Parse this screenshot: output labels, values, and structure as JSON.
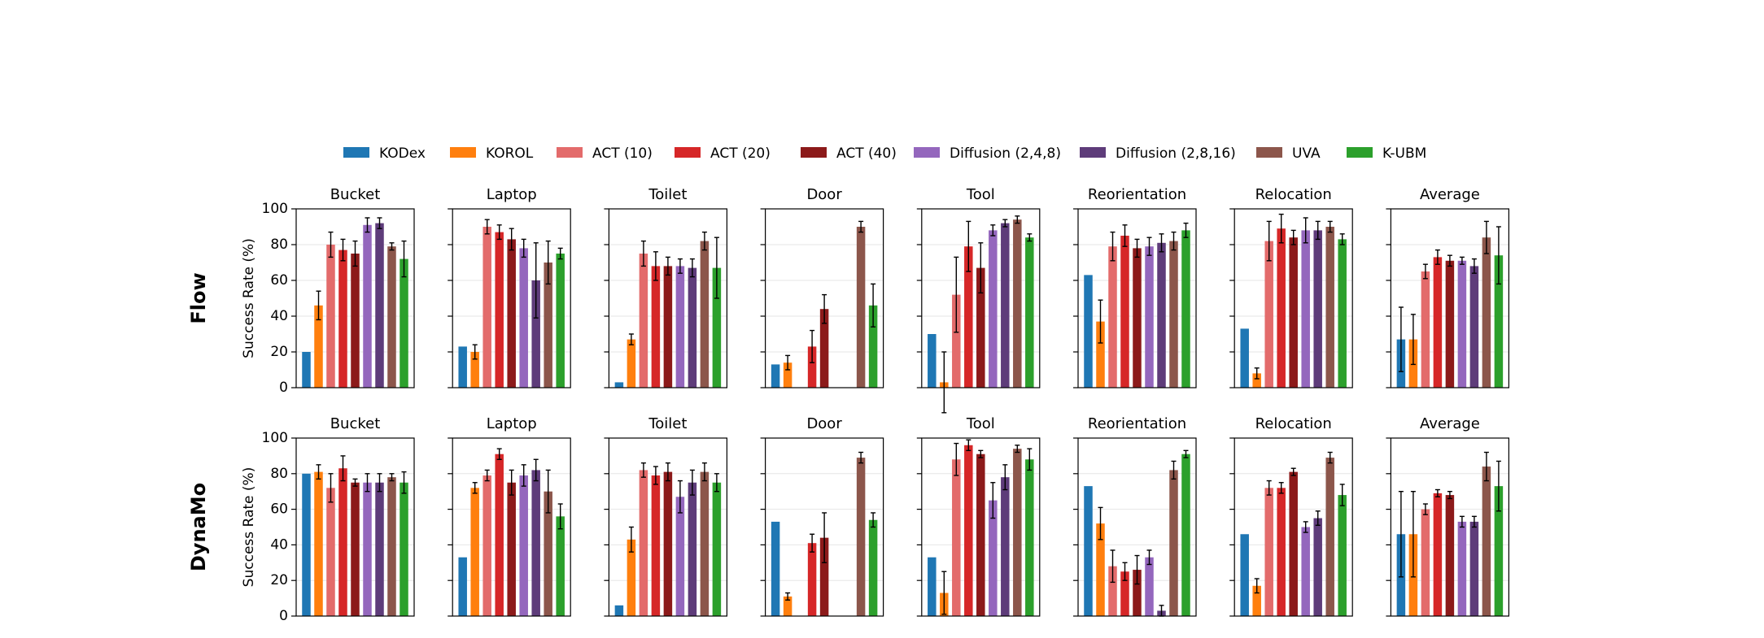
{
  "chart_data": {
    "type": "bar",
    "series": [
      {
        "name": "KODex",
        "color": "#1f77b4"
      },
      {
        "name": "KOROL",
        "color": "#ff7f0e"
      },
      {
        "name": "ACT (10)",
        "color": "#e36b6b"
      },
      {
        "name": "ACT (20)",
        "color": "#d62728"
      },
      {
        "name": "ACT (40)",
        "color": "#8c1a1a"
      },
      {
        "name": "Diffusion (2,4,8)",
        "color": "#9467bd"
      },
      {
        "name": "Diffusion (2,8,16)",
        "color": "#5e3c7a"
      },
      {
        "name": "UVA",
        "color": "#8c564b"
      },
      {
        "name": "K-UBM",
        "color": "#2ca02c"
      }
    ],
    "ylim": [
      0,
      100
    ],
    "yticks": [
      0,
      20,
      40,
      60,
      80,
      100
    ],
    "grid": true,
    "rows": [
      {
        "label": "Flow",
        "ylabel": "Success Rate (%)",
        "panels": [
          {
            "title": "Bucket",
            "values": [
              20,
              46,
              80,
              77,
              75,
              91,
              92,
              79,
              72
            ],
            "errors": [
              null,
              8,
              7,
              6,
              7,
              4,
              3,
              2,
              10
            ]
          },
          {
            "title": "Laptop",
            "values": [
              23,
              20,
              90,
              87,
              83,
              78,
              60,
              70,
              75
            ],
            "errors": [
              null,
              4,
              4,
              4,
              6,
              5,
              21,
              12,
              3
            ]
          },
          {
            "title": "Toilet",
            "values": [
              3,
              27,
              75,
              68,
              68,
              68,
              67,
              82,
              67
            ],
            "errors": [
              null,
              3,
              7,
              8,
              5,
              4,
              5,
              5,
              17
            ]
          },
          {
            "title": "Door",
            "values": [
              13,
              14,
              null,
              23,
              44,
              null,
              null,
              90,
              46
            ],
            "errors": [
              null,
              4,
              null,
              9,
              8,
              null,
              null,
              3,
              12
            ]
          },
          {
            "title": "Tool",
            "values": [
              30,
              3,
              52,
              79,
              67,
              88,
              92,
              94,
              84
            ],
            "errors": [
              null,
              17,
              21,
              14,
              14,
              3,
              2,
              2,
              2
            ]
          },
          {
            "title": "Reorientation",
            "values": [
              63,
              37,
              79,
              85,
              78,
              79,
              81,
              82,
              88
            ],
            "errors": [
              null,
              12,
              8,
              6,
              5,
              5,
              5,
              5,
              4
            ]
          },
          {
            "title": "Relocation",
            "values": [
              33,
              8,
              82,
              89,
              84,
              88,
              88,
              90,
              83
            ],
            "errors": [
              null,
              3,
              11,
              8,
              4,
              7,
              5,
              3,
              3
            ]
          },
          {
            "title": "Average",
            "values": [
              27,
              27,
              65,
              73,
              71,
              71,
              68,
              84,
              74
            ],
            "errors": [
              18,
              14,
              4,
              4,
              3,
              2,
              4,
              9,
              16
            ]
          }
        ]
      },
      {
        "label": "DynaMo",
        "ylabel": "Success Rate (%)",
        "panels": [
          {
            "title": "Bucket",
            "values": [
              80,
              81,
              72,
              83,
              75,
              75,
              75,
              78,
              75
            ],
            "errors": [
              null,
              4,
              8,
              7,
              2,
              5,
              5,
              2,
              6
            ]
          },
          {
            "title": "Laptop",
            "values": [
              33,
              72,
              79,
              91,
              75,
              79,
              82,
              70,
              56
            ],
            "errors": [
              null,
              3,
              3,
              3,
              7,
              6,
              6,
              12,
              7
            ]
          },
          {
            "title": "Toilet",
            "values": [
              6,
              43,
              82,
              79,
              81,
              67,
              75,
              81,
              75
            ],
            "errors": [
              null,
              7,
              4,
              5,
              5,
              9,
              7,
              5,
              5
            ]
          },
          {
            "title": "Door",
            "values": [
              53,
              11,
              null,
              41,
              44,
              null,
              null,
              89,
              54
            ],
            "errors": [
              null,
              2,
              null,
              5,
              14,
              null,
              null,
              3,
              4
            ]
          },
          {
            "title": "Tool",
            "values": [
              33,
              13,
              88,
              96,
              91,
              65,
              78,
              94,
              88
            ],
            "errors": [
              null,
              12,
              9,
              3,
              2,
              10,
              7,
              2,
              6
            ]
          },
          {
            "title": "Reorientation",
            "values": [
              73,
              52,
              28,
              25,
              26,
              33,
              3,
              82,
              91
            ],
            "errors": [
              null,
              9,
              9,
              5,
              8,
              4,
              3,
              5,
              2
            ]
          },
          {
            "title": "Relocation",
            "values": [
              46,
              17,
              72,
              72,
              81,
              50,
              55,
              89,
              68
            ],
            "errors": [
              null,
              4,
              4,
              3,
              2,
              3,
              4,
              3,
              6
            ]
          },
          {
            "title": "Average",
            "values": [
              46,
              46,
              60,
              69,
              68,
              53,
              53,
              84,
              73
            ],
            "errors": [
              24,
              24,
              3,
              2,
              2,
              3,
              3,
              8,
              14
            ]
          }
        ]
      }
    ]
  }
}
